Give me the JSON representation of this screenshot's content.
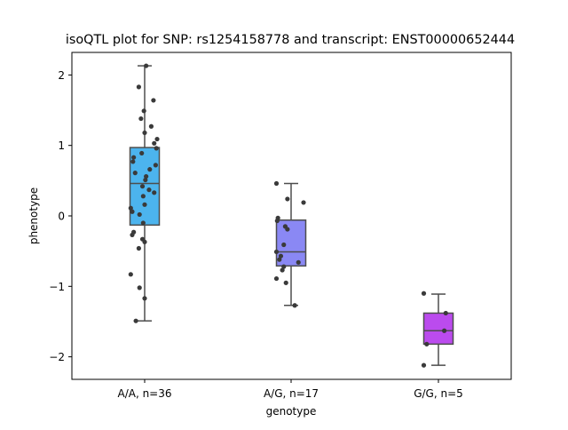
{
  "chart_data": {
    "type": "box",
    "title": "isoQTL plot for SNP: rs1254158778 and transcript: ENST00000652444",
    "xlabel": "genotype",
    "ylabel": "phenotype",
    "ylim": [
      -2.32,
      2.32
    ],
    "yticks": [
      -2,
      -1,
      0,
      1,
      2
    ],
    "yticklabels": [
      "−2",
      "−1",
      "0",
      "1",
      "2"
    ],
    "grid": false,
    "legend": "none",
    "categories": [
      "A/A, n=36",
      "A/G, n=17",
      "G/G, n=5"
    ],
    "colors": [
      "#4cb4ee",
      "#8a88f4",
      "#bb4bee"
    ],
    "point_color": "#3a3a3a",
    "box_edge_color": "#4d4d4d",
    "boxes": [
      {
        "category": "A/A, n=36",
        "whisker_low": -1.49,
        "q1": -0.13,
        "median": 0.46,
        "q3": 0.97,
        "whisker_high": 2.13
      },
      {
        "category": "A/G, n=17",
        "whisker_low": -1.27,
        "q1": -0.71,
        "median": -0.51,
        "q3": -0.06,
        "whisker_high": 0.46
      },
      {
        "category": "G/G, n=5",
        "whisker_low": -2.12,
        "q1": -1.82,
        "median": -1.63,
        "q3": -1.38,
        "whisker_high": -1.11
      }
    ],
    "points": [
      {
        "category": "A/A, n=36",
        "jitter": 0.02,
        "y": 2.13
      },
      {
        "category": "A/A, n=36",
        "jitter": -0.08,
        "y": 1.83
      },
      {
        "category": "A/A, n=36",
        "jitter": 0.12,
        "y": 1.64
      },
      {
        "category": "A/A, n=36",
        "jitter": -0.01,
        "y": 1.49
      },
      {
        "category": "A/A, n=36",
        "jitter": -0.05,
        "y": 1.38
      },
      {
        "category": "A/A, n=36",
        "jitter": 0.09,
        "y": 1.27
      },
      {
        "category": "A/A, n=36",
        "jitter": 0.0,
        "y": 1.18
      },
      {
        "category": "A/A, n=36",
        "jitter": 0.17,
        "y": 1.09
      },
      {
        "category": "A/A, n=36",
        "jitter": 0.13,
        "y": 1.03
      },
      {
        "category": "A/A, n=36",
        "jitter": 0.16,
        "y": 0.96
      },
      {
        "category": "A/A, n=36",
        "jitter": -0.04,
        "y": 0.89
      },
      {
        "category": "A/A, n=36",
        "jitter": -0.15,
        "y": 0.83
      },
      {
        "category": "A/A, n=36",
        "jitter": -0.16,
        "y": 0.77
      },
      {
        "category": "A/A, n=36",
        "jitter": 0.15,
        "y": 0.72
      },
      {
        "category": "A/A, n=36",
        "jitter": 0.07,
        "y": 0.66
      },
      {
        "category": "A/A, n=36",
        "jitter": -0.13,
        "y": 0.61
      },
      {
        "category": "A/A, n=36",
        "jitter": 0.02,
        "y": 0.56
      },
      {
        "category": "A/A, n=36",
        "jitter": 0.01,
        "y": 0.51
      },
      {
        "category": "A/A, n=36",
        "jitter": -0.03,
        "y": 0.42
      },
      {
        "category": "A/A, n=36",
        "jitter": 0.06,
        "y": 0.37
      },
      {
        "category": "A/A, n=36",
        "jitter": 0.13,
        "y": 0.33
      },
      {
        "category": "A/A, n=36",
        "jitter": -0.02,
        "y": 0.28
      },
      {
        "category": "A/A, n=36",
        "jitter": 0.0,
        "y": 0.16
      },
      {
        "category": "A/A, n=36",
        "jitter": -0.19,
        "y": 0.11
      },
      {
        "category": "A/A, n=36",
        "jitter": -0.17,
        "y": 0.06
      },
      {
        "category": "A/A, n=36",
        "jitter": -0.07,
        "y": 0.02
      },
      {
        "category": "A/A, n=36",
        "jitter": -0.02,
        "y": -0.1
      },
      {
        "category": "A/A, n=36",
        "jitter": -0.15,
        "y": -0.23
      },
      {
        "category": "A/A, n=36",
        "jitter": -0.17,
        "y": -0.27
      },
      {
        "category": "A/A, n=36",
        "jitter": -0.03,
        "y": -0.33
      },
      {
        "category": "A/A, n=36",
        "jitter": 0.0,
        "y": -0.37
      },
      {
        "category": "A/A, n=36",
        "jitter": -0.08,
        "y": -0.46
      },
      {
        "category": "A/A, n=36",
        "jitter": -0.19,
        "y": -0.83
      },
      {
        "category": "A/A, n=36",
        "jitter": -0.07,
        "y": -1.02
      },
      {
        "category": "A/A, n=36",
        "jitter": 0.0,
        "y": -1.17
      },
      {
        "category": "A/A, n=36",
        "jitter": -0.12,
        "y": -1.49
      },
      {
        "category": "A/G, n=17",
        "jitter": -0.2,
        "y": 0.46
      },
      {
        "category": "A/G, n=17",
        "jitter": -0.05,
        "y": 0.24
      },
      {
        "category": "A/G, n=17",
        "jitter": 0.17,
        "y": 0.19
      },
      {
        "category": "A/G, n=17",
        "jitter": -0.18,
        "y": -0.03
      },
      {
        "category": "A/G, n=17",
        "jitter": -0.19,
        "y": -0.07
      },
      {
        "category": "A/G, n=17",
        "jitter": -0.08,
        "y": -0.15
      },
      {
        "category": "A/G, n=17",
        "jitter": -0.05,
        "y": -0.19
      },
      {
        "category": "A/G, n=17",
        "jitter": -0.1,
        "y": -0.41
      },
      {
        "category": "A/G, n=17",
        "jitter": -0.2,
        "y": -0.51
      },
      {
        "category": "A/G, n=17",
        "jitter": -0.14,
        "y": -0.57
      },
      {
        "category": "A/G, n=17",
        "jitter": -0.16,
        "y": -0.62
      },
      {
        "category": "A/G, n=17",
        "jitter": 0.1,
        "y": -0.66
      },
      {
        "category": "A/G, n=17",
        "jitter": -0.1,
        "y": -0.72
      },
      {
        "category": "A/G, n=17",
        "jitter": -0.12,
        "y": -0.77
      },
      {
        "category": "A/G, n=17",
        "jitter": -0.2,
        "y": -0.89
      },
      {
        "category": "A/G, n=17",
        "jitter": -0.07,
        "y": -0.95
      },
      {
        "category": "A/G, n=17",
        "jitter": 0.05,
        "y": -1.27
      },
      {
        "category": "G/G, n=5",
        "jitter": -0.2,
        "y": -1.1
      },
      {
        "category": "G/G, n=5",
        "jitter": 0.1,
        "y": -1.38
      },
      {
        "category": "G/G, n=5",
        "jitter": 0.08,
        "y": -1.63
      },
      {
        "category": "G/G, n=5",
        "jitter": -0.16,
        "y": -1.82
      },
      {
        "category": "G/G, n=5",
        "jitter": -0.2,
        "y": -2.12
      }
    ]
  }
}
